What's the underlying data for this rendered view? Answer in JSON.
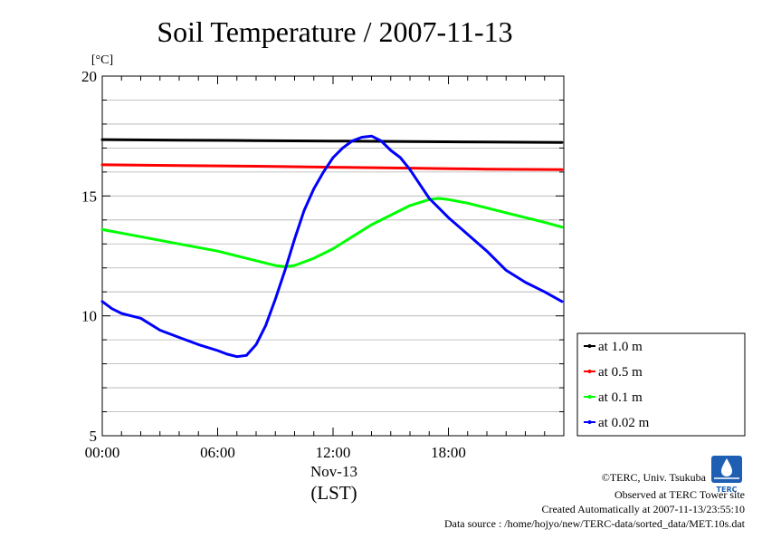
{
  "chart_data": {
    "type": "line",
    "title": "Soil Temperature / 2007-11-13",
    "y_unit_label": "[°C]",
    "ylim": [
      5,
      20
    ],
    "y_ticks": [
      5,
      10,
      15,
      20
    ],
    "y_tick_labels": [
      "5",
      "10",
      "15",
      "20"
    ],
    "xlim": [
      0,
      24
    ],
    "x_ticks": [
      0,
      6,
      12,
      18
    ],
    "x_tick_labels": [
      "00:00",
      "06:00",
      "12:00",
      "18:00"
    ],
    "x_date_label": "Nov-13",
    "xlabel": "(LST)",
    "grid": true,
    "legend_position": "right-bottom",
    "series": [
      {
        "name": "at 1.0 m",
        "color": "#000000",
        "x": [
          0,
          4,
          8,
          12,
          16,
          20,
          23.9
        ],
        "values": [
          17.35,
          17.33,
          17.31,
          17.29,
          17.27,
          17.25,
          17.23
        ]
      },
      {
        "name": "at 0.5 m",
        "color": "#ff0000",
        "x": [
          0,
          4,
          8,
          12,
          16,
          20,
          23.9
        ],
        "values": [
          16.3,
          16.27,
          16.24,
          16.2,
          16.16,
          16.12,
          16.1
        ]
      },
      {
        "name": "at 0.1 m",
        "color": "#00ff00",
        "x": [
          0,
          2,
          4,
          6,
          8,
          9,
          9.5,
          10,
          11,
          12,
          13,
          14,
          15,
          16,
          17,
          17.5,
          18,
          19,
          20,
          21,
          22,
          23,
          23.9
        ],
        "values": [
          13.6,
          13.3,
          13.0,
          12.7,
          12.3,
          12.1,
          12.05,
          12.1,
          12.4,
          12.8,
          13.3,
          13.8,
          14.2,
          14.6,
          14.85,
          14.9,
          14.85,
          14.7,
          14.5,
          14.3,
          14.1,
          13.9,
          13.7
        ]
      },
      {
        "name": "at 0.02 m",
        "color": "#0000ff",
        "x": [
          0,
          0.5,
          1,
          1.5,
          2,
          3,
          4,
          5,
          6,
          6.5,
          7,
          7.5,
          8,
          8.5,
          9,
          9.5,
          10,
          10.5,
          11,
          11.5,
          12,
          12.5,
          13,
          13.5,
          14,
          14.5,
          15,
          15.5,
          16,
          16.5,
          17,
          17.5,
          18,
          19,
          20,
          21,
          22,
          23,
          23.9
        ],
        "values": [
          10.6,
          10.3,
          10.1,
          10.0,
          9.9,
          9.4,
          9.1,
          8.8,
          8.55,
          8.4,
          8.3,
          8.35,
          8.8,
          9.6,
          10.7,
          11.9,
          13.2,
          14.4,
          15.3,
          16.0,
          16.6,
          17.0,
          17.3,
          17.45,
          17.5,
          17.3,
          16.9,
          16.6,
          16.1,
          15.5,
          14.9,
          14.5,
          14.1,
          13.4,
          12.7,
          11.9,
          11.4,
          11.0,
          10.6
        ]
      }
    ]
  },
  "credits": {
    "copyright": "©TERC, Univ. Tsukuba",
    "observed": "Observed at TERC Tower site",
    "created": "Created Automatically at 2007-11-13/23:55:10",
    "source": "Data source : /home/hojyo/new/TERC-data/sorted_data/MET.10s.dat",
    "logo_text": "TERC"
  }
}
